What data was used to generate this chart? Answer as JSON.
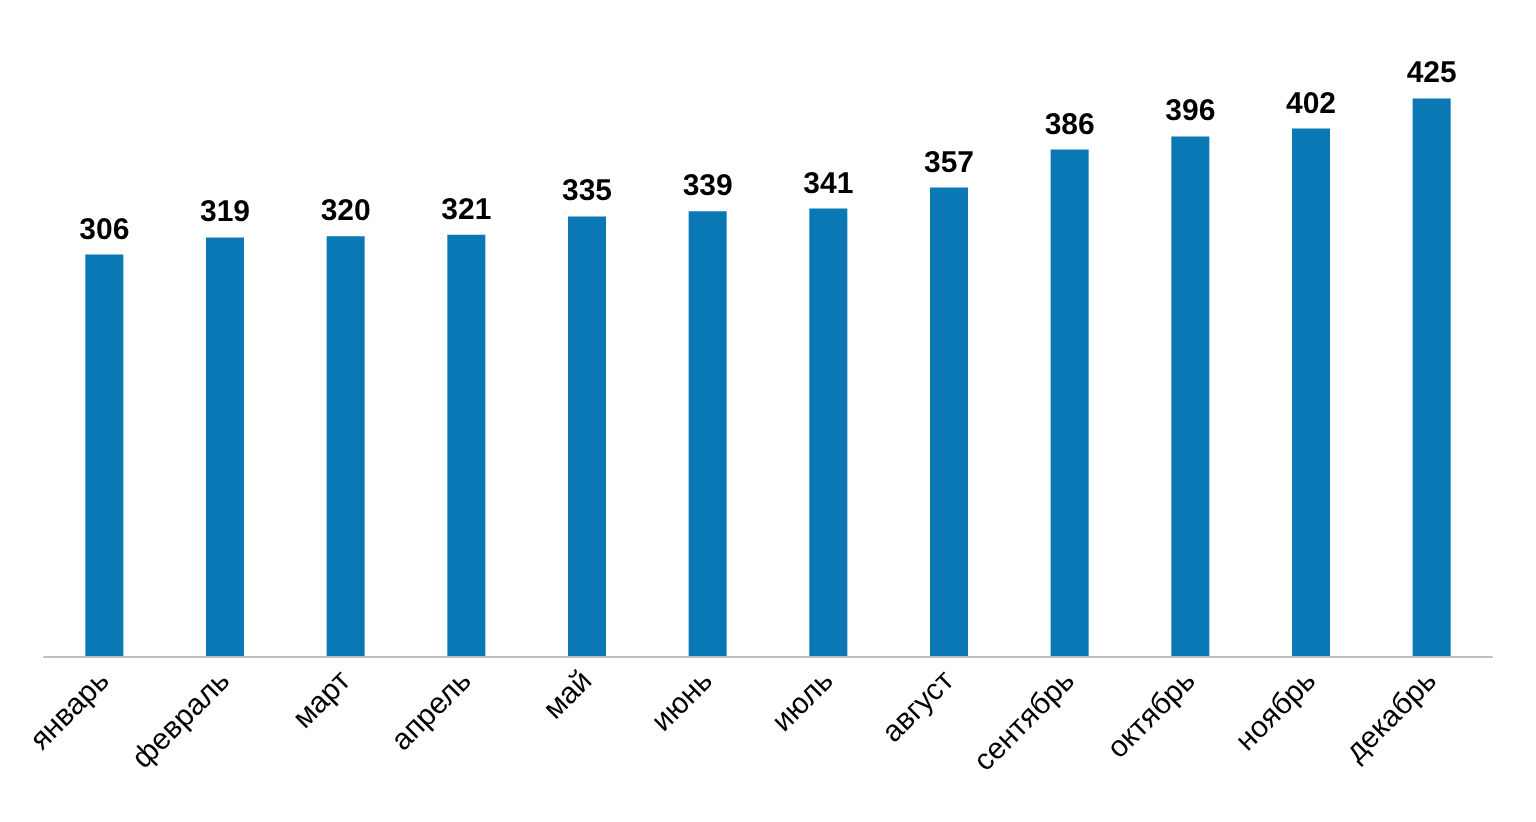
{
  "chart_data": {
    "type": "bar",
    "categories": [
      "январь",
      "февраль",
      "март",
      "апрель",
      "май",
      "июнь",
      "июль",
      "август",
      "сентябрь",
      "октябрь",
      "ноябрь",
      "декабрь"
    ],
    "values": [
      306,
      319,
      320,
      321,
      335,
      339,
      341,
      357,
      386,
      396,
      402,
      425
    ],
    "color": "#0a78b5",
    "data_labels": true,
    "grid": false
  }
}
